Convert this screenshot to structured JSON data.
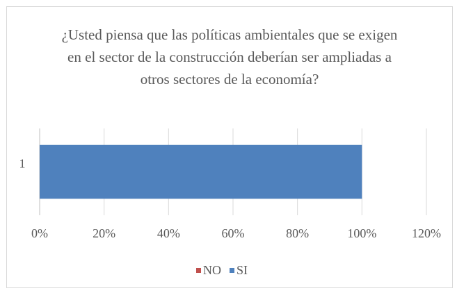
{
  "chart_data": {
    "type": "bar",
    "orientation": "horizontal",
    "stacked": true,
    "title": "¿Usted piensa que las políticas ambientales que se exigen en el sector de la construcción deberían ser ampliadas a otros sectores de la economía?",
    "categories": [
      "1"
    ],
    "series": [
      {
        "name": "NO",
        "color": "#c0504d",
        "values": [
          0
        ]
      },
      {
        "name": "SI",
        "color": "#4f81bd",
        "values": [
          100
        ]
      }
    ],
    "xlim": [
      0,
      120
    ],
    "xticks": [
      {
        "value": 0,
        "label": "0%"
      },
      {
        "value": 20,
        "label": "20%"
      },
      {
        "value": 40,
        "label": "40%"
      },
      {
        "value": 60,
        "label": "60%"
      },
      {
        "value": 80,
        "label": "80%"
      },
      {
        "value": 100,
        "label": "100%"
      },
      {
        "value": 120,
        "label": "120%"
      }
    ],
    "grid": true,
    "legend": "bottom"
  }
}
